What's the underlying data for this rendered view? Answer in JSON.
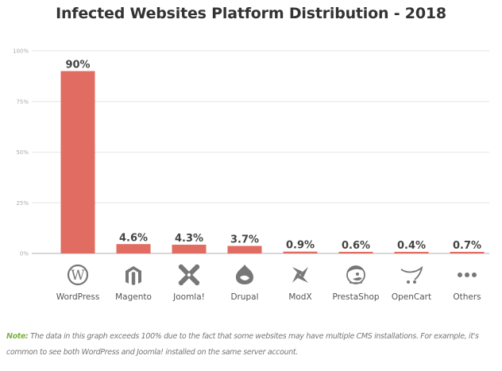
{
  "chart_data": {
    "type": "bar",
    "title": "Infected Websites Platform Distribution - 2018",
    "xlabel": "",
    "ylabel": "",
    "ylim": [
      0,
      100
    ],
    "yticks": [
      0,
      25,
      50,
      75,
      100
    ],
    "ytick_labels": [
      "0%",
      "25%",
      "50%",
      "75%",
      "100%"
    ],
    "grid": true,
    "categories": [
      "WordPress",
      "Magento",
      "Joomla!",
      "Drupal",
      "ModX",
      "PrestaShop",
      "OpenCart",
      "Others"
    ],
    "values": [
      90,
      4.6,
      4.3,
      3.7,
      0.9,
      0.6,
      0.4,
      0.7
    ],
    "value_labels": [
      "90%",
      "4.6%",
      "4.3%",
      "3.7%",
      "0.9%",
      "0.6%",
      "0.4%",
      "0.7%"
    ],
    "icons": [
      "wordpress-icon",
      "magento-icon",
      "joomla-icon",
      "drupal-icon",
      "modx-icon",
      "prestashop-icon",
      "opencart-icon",
      "others-icon"
    ],
    "bar_color": "#e06c62",
    "icon_color": "#777777"
  },
  "note": {
    "label": "Note:",
    "text": " The data in this graph exceeds 100% due to the fact that some websites may have multiple CMS installations. For example, it's common to see both WordPress and Joomla! installed on the same server account.",
    "label_color": "#7cb342"
  }
}
